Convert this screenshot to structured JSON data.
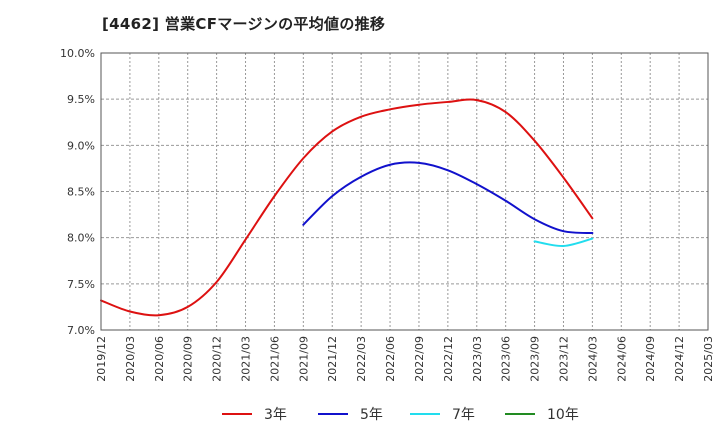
{
  "chart_data": {
    "type": "line",
    "title": "[4462]  営業CFマージンの平均値の推移",
    "xlabel": "",
    "ylabel": "",
    "ylim": [
      7.0,
      10.0
    ],
    "y_ticks": [
      "7.0%",
      "7.5%",
      "8.0%",
      "8.5%",
      "9.0%",
      "9.5%",
      "10.0%"
    ],
    "y_tick_values": [
      7.0,
      7.5,
      8.0,
      8.5,
      9.0,
      9.5,
      10.0
    ],
    "x_ticks": [
      "2019/12",
      "2020/03",
      "2020/06",
      "2020/09",
      "2020/12",
      "2021/03",
      "2021/06",
      "2021/09",
      "2021/12",
      "2022/03",
      "2022/06",
      "2022/09",
      "2022/12",
      "2023/03",
      "2023/06",
      "2023/09",
      "2023/12",
      "2024/03",
      "2024/06",
      "2024/09",
      "2024/12",
      "2025/03"
    ],
    "grid": true,
    "legend_position": "bottom",
    "series": [
      {
        "name": "3年",
        "color": "#dd1111",
        "points": [
          [
            "2019/12",
            7.32
          ],
          [
            "2020/03",
            7.2
          ],
          [
            "2020/06",
            7.16
          ],
          [
            "2020/09",
            7.25
          ],
          [
            "2020/12",
            7.52
          ],
          [
            "2021/03",
            7.98
          ],
          [
            "2021/06",
            8.45
          ],
          [
            "2021/09",
            8.86
          ],
          [
            "2021/12",
            9.15
          ],
          [
            "2022/03",
            9.31
          ],
          [
            "2022/06",
            9.39
          ],
          [
            "2022/09",
            9.44
          ],
          [
            "2022/12",
            9.47
          ],
          [
            "2023/03",
            9.49
          ],
          [
            "2023/06",
            9.36
          ],
          [
            "2023/09",
            9.05
          ],
          [
            "2023/12",
            8.65
          ],
          [
            "2024/03",
            8.21
          ]
        ]
      },
      {
        "name": "5年",
        "color": "#1111cc",
        "points": [
          [
            "2021/09",
            8.14
          ],
          [
            "2021/12",
            8.45
          ],
          [
            "2022/03",
            8.66
          ],
          [
            "2022/06",
            8.79
          ],
          [
            "2022/09",
            8.81
          ],
          [
            "2022/12",
            8.73
          ],
          [
            "2023/03",
            8.58
          ],
          [
            "2023/06",
            8.4
          ],
          [
            "2023/09",
            8.2
          ],
          [
            "2023/12",
            8.07
          ],
          [
            "2024/03",
            8.05
          ]
        ]
      },
      {
        "name": "7年",
        "color": "#22ddee",
        "points": [
          [
            "2023/09",
            7.96
          ],
          [
            "2023/12",
            7.91
          ],
          [
            "2024/03",
            7.99
          ]
        ]
      },
      {
        "name": "10年",
        "color": "#228B22",
        "points": []
      }
    ]
  }
}
